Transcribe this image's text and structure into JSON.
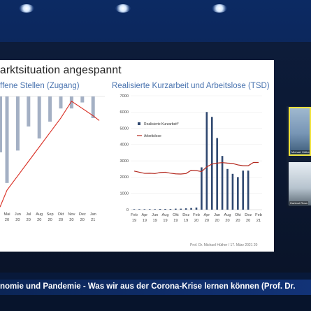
{
  "slide": {
    "title": "arktsituation angespannt",
    "left_title": "ffene Stellen (Zugang)",
    "right_title": "Realisierte Kurzarbeit und Arbeitslose (TSD)",
    "footer": "Prof. Dr. Michael Hüther / 17. März 2021   20"
  },
  "video_tiles": [
    {
      "name": "Michael Hüther"
    },
    {
      "name": "Hartmut Rosa"
    }
  ],
  "caption": "nomie und Pandemie - Was wir aus der Corona-Krise lernen können (Prof. Dr.",
  "colors": {
    "bar": "#2f4870",
    "line": "#b3281e",
    "left_bar": "#a4b0c4",
    "left_line": "#d92d22",
    "caption_bg": "#0b2556"
  },
  "chart_data": [
    {
      "type": "bar",
      "title": "ffene Stellen (Zugang)",
      "categories": [
        "Mai 20",
        "Jun 20",
        "Jul 20",
        "Aug 20",
        "Sep 20",
        "Okt 20",
        "Nov 20",
        "Dez 20",
        "Jan 21"
      ],
      "series": [
        {
          "values": [
            -72,
            -45,
            -25,
            -35,
            -21,
            -10,
            -10,
            -5,
            -18
          ]
        },
        {
          "values": [
            -78,
            -66,
            -54,
            -42,
            -30,
            -18,
            -4,
            -10,
            -16
          ]
        }
      ]
    },
    {
      "type": "bar",
      "title": "Realisierte Kurzarbeit und Arbeitslose (TSD)",
      "categories": [
        "Feb 19",
        "Apr 19",
        "Jun 19",
        "Aug 19",
        "Okt 19",
        "Dez 19",
        "Feb 20",
        "Apr 20",
        "Jun 20",
        "Aug 20",
        "Okt 20",
        "Dez 20",
        "Feb 21"
      ],
      "ylim": [
        0,
        7000
      ],
      "yticks": [
        "7000",
        "6000",
        "5000",
        "4000",
        "3000",
        "2000",
        "1000",
        "0"
      ],
      "legend": [
        "Realisierte Kurzarbeit*",
        "Arbeitslose"
      ],
      "series": [
        {
          "name": "Realisierte Kurzarbeit*",
          "type": "bar",
          "x": [
            "Feb 19",
            "Mär 19",
            "Apr 19",
            "Mai 19",
            "Jun 19",
            "Jul 19",
            "Aug 19",
            "Sep 19",
            "Okt 19",
            "Nov 19",
            "Dez 19",
            "Jan 20",
            "Feb 20",
            "Mär 20",
            "Apr 20",
            "Mai 20",
            "Jun 20",
            "Jul 20",
            "Aug 20",
            "Sep 20",
            "Okt 20",
            "Nov 20",
            "Dez 20"
          ],
          "values": [
            30,
            30,
            30,
            30,
            30,
            40,
            40,
            40,
            60,
            60,
            80,
            100,
            130,
            2600,
            6000,
            5700,
            4400,
            3300,
            2500,
            2200,
            2000,
            2400,
            2400
          ]
        },
        {
          "name": "Arbeitslose",
          "type": "line",
          "x": [
            "Feb 19",
            "Mär 19",
            "Apr 19",
            "Mai 19",
            "Jun 19",
            "Jul 19",
            "Aug 19",
            "Sep 19",
            "Okt 19",
            "Nov 19",
            "Dez 19",
            "Jan 20",
            "Feb 20",
            "Mär 20",
            "Apr 20",
            "Mai 20",
            "Jun 20",
            "Jul 20",
            "Aug 20",
            "Sep 20",
            "Okt 20",
            "Nov 20",
            "Dez 20",
            "Jan 21",
            "Feb 21"
          ],
          "values": [
            2370,
            2300,
            2230,
            2240,
            2220,
            2280,
            2300,
            2240,
            2200,
            2190,
            2220,
            2420,
            2400,
            2340,
            2630,
            2800,
            2860,
            2890,
            2860,
            2840,
            2750,
            2700,
            2700,
            2900,
            2900
          ]
        }
      ]
    }
  ]
}
